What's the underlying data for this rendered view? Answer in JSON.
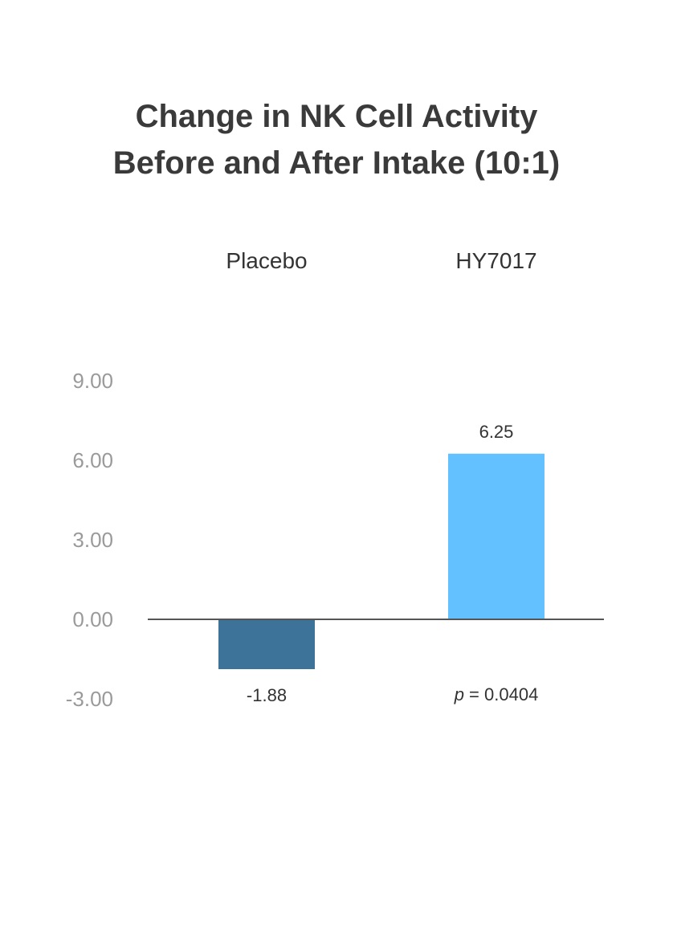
{
  "chart_data": {
    "type": "bar",
    "title": "Change in NK Cell Activity",
    "subtitle": "Before and After Intake (10:1)",
    "categories": [
      "Placebo",
      "HY7017"
    ],
    "values": [
      -1.88,
      6.25
    ],
    "value_labels": [
      "-1.88",
      "6.25"
    ],
    "colors": [
      "#3d7399",
      "#63c1ff"
    ],
    "ylim": [
      -3,
      9
    ],
    "yticks": [
      -3,
      0,
      3,
      6,
      9
    ],
    "ytick_labels": [
      "-3.00",
      "0.00",
      "3.00",
      "6.00",
      "9.00"
    ],
    "grid": false,
    "xlabel": "",
    "ylabel": "",
    "annotation": {
      "p_symbol": "p",
      "p_text": " = 0.0404"
    }
  }
}
